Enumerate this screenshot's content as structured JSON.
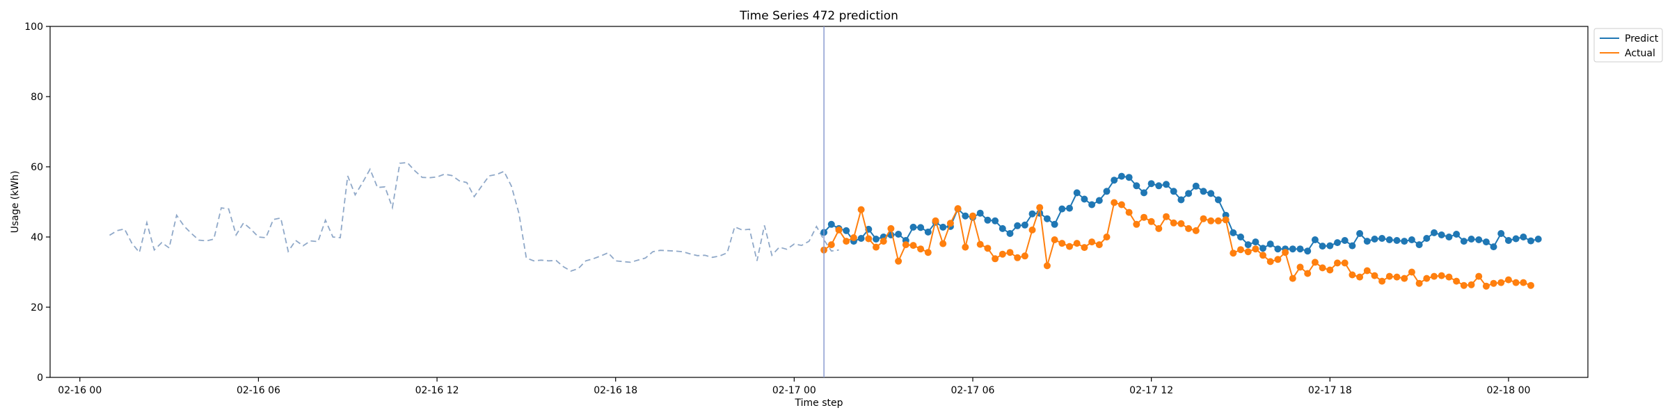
{
  "chart_data": {
    "type": "line",
    "title": "Time Series 472 prediction",
    "xlabel": "Time step",
    "ylabel": "Usage (kWh)",
    "ylim": [
      0,
      100
    ],
    "xlim": [
      "2016-02-15 23:00",
      "2016-02-18 02:40"
    ],
    "x_ticks": [
      {
        "t": "2016-02-16 00:00",
        "label": "02-16 00"
      },
      {
        "t": "2016-02-16 06:00",
        "label": "02-16 06"
      },
      {
        "t": "2016-02-16 12:00",
        "label": "02-16 12"
      },
      {
        "t": "2016-02-16 18:00",
        "label": "02-16 18"
      },
      {
        "t": "2016-02-17 00:00",
        "label": "02-17 00"
      },
      {
        "t": "2016-02-17 06:00",
        "label": "02-17 06"
      },
      {
        "t": "2016-02-17 12:00",
        "label": "02-17 12"
      },
      {
        "t": "2016-02-17 18:00",
        "label": "02-17 18"
      },
      {
        "t": "2016-02-18 00:00",
        "label": "02-18 00"
      }
    ],
    "y_ticks": [
      0,
      20,
      40,
      60,
      80,
      100
    ],
    "grid": false,
    "legend": {
      "placement": "upper-right-outside",
      "entries": [
        "Predict",
        "Actual"
      ]
    },
    "forecast_start": "2016-02-17 01:00",
    "series": [
      {
        "name": "",
        "style": "dashed",
        "color": "#8fa8c8",
        "x_start": "2016-02-16 01:00",
        "step_minutes": 15,
        "values": [
          40.5,
          41.8,
          42.3,
          38.2,
          35.6,
          44.1,
          36.3,
          38.4,
          36.9,
          46.2,
          43.1,
          41.0,
          39.1,
          38.9,
          39.4,
          48.3,
          48.0,
          40.6,
          44.0,
          42.2,
          40.0,
          39.8,
          45.0,
          45.4,
          35.9,
          39.0,
          37.5,
          38.9,
          38.7,
          44.8,
          40.0,
          39.8,
          57.4,
          52.0,
          55.5,
          59.3,
          54.1,
          54.3,
          48.4,
          61.0,
          61.2,
          58.9,
          57.0,
          56.9,
          57.1,
          57.9,
          57.5,
          56.0,
          55.5,
          51.5,
          54.5,
          57.4,
          57.8,
          58.7,
          54.5,
          46.8,
          34.0,
          33.2,
          33.4,
          33.2,
          33.3,
          31.5,
          30.3,
          31.0,
          33.2,
          33.8,
          34.6,
          35.5,
          33.2,
          33.0,
          32.8,
          33.4,
          34.0,
          35.8,
          36.2,
          36.1,
          36.0,
          35.8,
          35.2,
          34.7,
          34.8,
          34.2,
          34.6,
          35.5,
          42.9,
          42.0,
          42.2,
          33.2,
          43.3,
          34.8,
          37.1,
          36.5,
          38.0,
          37.6,
          38.8,
          43.0,
          39.2,
          36.0,
          36.3
        ]
      },
      {
        "name": "Predict",
        "style": "line-markers",
        "color": "#1f77b4",
        "x_start": "2016-02-17 01:00",
        "step_minutes": 15,
        "values": [
          41.3,
          43.6,
          42.4,
          41.8,
          38.8,
          39.6,
          42.2,
          39.4,
          40.0,
          40.6,
          40.8,
          39.0,
          42.8,
          42.7,
          41.4,
          44.2,
          42.8,
          43.0,
          48.0,
          46.0,
          45.6,
          46.8,
          44.8,
          44.6,
          42.4,
          41.0,
          43.2,
          43.4,
          46.6,
          46.8,
          45.2,
          43.6,
          48.0,
          48.2,
          52.6,
          50.8,
          49.2,
          50.4,
          53.0,
          56.2,
          57.3,
          57.0,
          54.6,
          52.6,
          55.2,
          54.6,
          55.0,
          53.0,
          50.6,
          52.4,
          54.5,
          53.0,
          52.4,
          50.6,
          46.2,
          41.2,
          40.0,
          37.8,
          38.6,
          36.8,
          38.0,
          36.6,
          36.6,
          36.6,
          36.6,
          36.0,
          39.2,
          37.4,
          37.5,
          38.4,
          39.0,
          37.5,
          41.0,
          38.8,
          39.4,
          39.6,
          39.2,
          39.0,
          38.8,
          39.2,
          37.8,
          39.6,
          41.2,
          40.6,
          40.0,
          40.8,
          38.8,
          39.4,
          39.2,
          38.6,
          37.2,
          41.0,
          39.0,
          39.5,
          40.0,
          38.9,
          39.4
        ]
      },
      {
        "name": "Actual",
        "style": "line-markers",
        "color": "#ff7f0e",
        "x_start": "2016-02-17 01:00",
        "step_minutes": 15,
        "values": [
          36.3,
          37.8,
          42.0,
          38.8,
          39.8,
          47.8,
          39.5,
          37.1,
          38.8,
          42.4,
          33.1,
          37.8,
          37.6,
          36.6,
          35.6,
          44.6,
          38.1,
          43.9,
          48.1,
          37.1,
          46.0,
          37.9,
          36.8,
          33.8,
          35.1,
          35.6,
          34.1,
          34.6,
          42.0,
          48.4,
          31.8,
          39.2,
          38.2,
          37.3,
          38.2,
          37.0,
          38.6,
          37.8,
          40.0,
          49.8,
          49.2,
          47.0,
          43.6,
          45.6,
          44.4,
          42.4,
          45.8,
          44.0,
          43.8,
          42.4,
          41.8,
          45.2,
          44.6,
          44.6,
          44.9,
          35.4,
          36.4,
          35.8,
          36.6,
          34.8,
          33.0,
          33.6,
          35.6,
          28.2,
          31.4,
          29.6,
          32.8,
          31.2,
          30.6,
          32.6,
          32.6,
          29.2,
          28.6,
          30.4,
          29.0,
          27.4,
          28.8,
          28.6,
          28.2,
          30.0,
          26.8,
          28.2,
          28.8,
          29.0,
          28.6,
          27.4,
          26.2,
          26.4,
          28.8,
          26.0,
          26.8,
          27.0,
          27.8,
          27.0,
          27.0,
          26.2
        ]
      }
    ]
  }
}
